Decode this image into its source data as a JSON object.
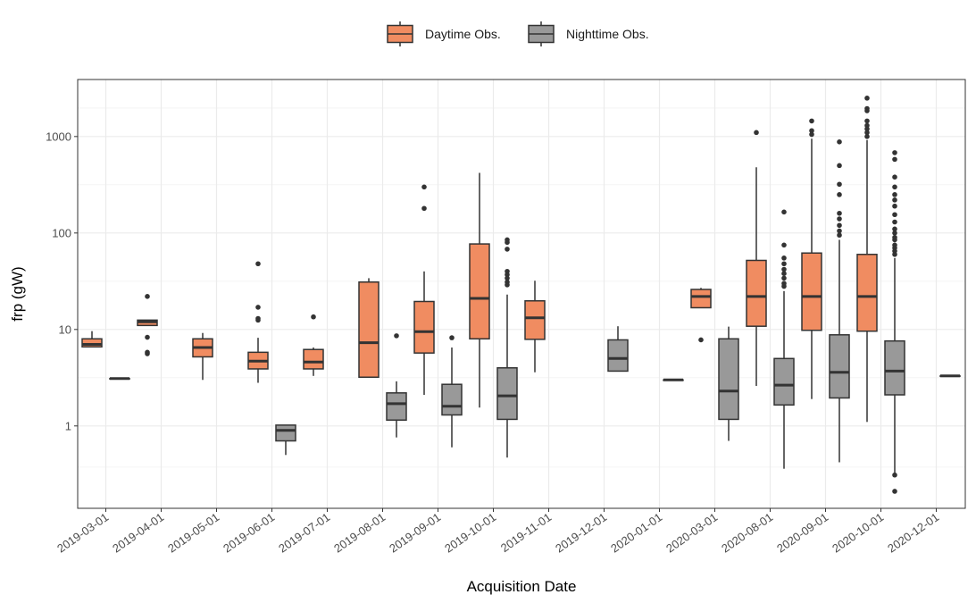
{
  "chart_data": {
    "type": "box",
    "xlabel": "Acquisition Date",
    "ylabel": "frp (gW)",
    "y_scale": "log10",
    "ylim": [
      0.14,
      3900
    ],
    "yticks": [
      1,
      10,
      100,
      1000
    ],
    "ytick_labels": [
      "1",
      "10",
      "100",
      "1000"
    ],
    "grid": true,
    "legend_position": "top",
    "colors": {
      "Daytime Obs.": "#f08c61",
      "Nighttime Obs.": "#999999",
      "outline": "#333333"
    },
    "categories": [
      "2019-03-01",
      "2019-04-01",
      "2019-05-01",
      "2019-06-01",
      "2019-07-01",
      "2019-08-01",
      "2019-09-01",
      "2019-10-01",
      "2019-11-01",
      "2019-12-01",
      "2020-01-01",
      "2020-03-01",
      "2020-08-01",
      "2020-09-01",
      "2020-10-01",
      "2020-12-01"
    ],
    "series": [
      {
        "name": "Daytime Obs.",
        "boxes": [
          {
            "category": "2019-03-01",
            "min": 6.6,
            "q1": 6.6,
            "median": 7.0,
            "q3": 8.0,
            "max": 9.6,
            "outliers": []
          },
          {
            "category": "2019-04-01",
            "min": 11.0,
            "q1": 11.0,
            "median": 12.0,
            "q3": 12.5,
            "max": 12.5,
            "outliers": [
              22,
              8.3,
              5.8,
              5.6
            ]
          },
          {
            "category": "2019-05-01",
            "min": 3.0,
            "q1": 5.2,
            "median": 6.5,
            "q3": 8.0,
            "max": 9.2,
            "outliers": []
          },
          {
            "category": "2019-06-01",
            "min": 2.8,
            "q1": 3.9,
            "median": 4.7,
            "q3": 5.8,
            "max": 8.2,
            "outliers": [
              48,
              17,
              13,
              12.5
            ]
          },
          {
            "category": "2019-07-01",
            "min": 3.3,
            "q1": 3.9,
            "median": 4.6,
            "q3": 6.2,
            "max": 6.5,
            "outliers": [
              13.5
            ]
          },
          {
            "category": "2019-08-01",
            "min": 3.2,
            "q1": 3.2,
            "median": 7.3,
            "q3": 31,
            "max": 34,
            "outliers": []
          },
          {
            "category": "2019-09-01",
            "min": 2.1,
            "q1": 5.7,
            "median": 9.5,
            "q3": 19.5,
            "max": 40,
            "outliers": [
              300,
              180
            ]
          },
          {
            "category": "2019-10-01",
            "min": 1.55,
            "q1": 8.0,
            "median": 21,
            "q3": 77,
            "max": 420,
            "outliers": []
          },
          {
            "category": "2019-11-01",
            "min": 3.6,
            "q1": 7.9,
            "median": 13.2,
            "q3": 19.8,
            "max": 32,
            "outliers": []
          },
          {
            "category": "2020-03-01",
            "min": 16.8,
            "q1": 16.8,
            "median": 22,
            "q3": 26,
            "max": 27,
            "outliers": [
              7.8
            ]
          },
          {
            "category": "2020-08-01",
            "min": 2.6,
            "q1": 10.8,
            "median": 22,
            "q3": 52,
            "max": 480,
            "outliers": [
              1100
            ]
          },
          {
            "category": "2020-09-01",
            "min": 1.9,
            "q1": 9.8,
            "median": 22,
            "q3": 62,
            "max": 950,
            "outliers": [
              1450,
              1150,
              1050
            ]
          },
          {
            "category": "2020-10-01",
            "min": 1.1,
            "q1": 9.6,
            "median": 22,
            "q3": 60,
            "max": 920,
            "outliers": [
              2500,
              1950,
              1850,
              1450,
              1300,
              1200,
              1100,
              1000
            ]
          }
        ]
      },
      {
        "name": "Nighttime Obs.",
        "boxes": [
          {
            "category": "2019-03-01",
            "min": 3.1,
            "q1": 3.1,
            "median": 3.1,
            "q3": 3.1,
            "max": 3.1,
            "outliers": []
          },
          {
            "category": "2019-06-01",
            "min": 0.5,
            "q1": 0.7,
            "median": 0.9,
            "q3": 1.02,
            "max": 1.02,
            "outliers": []
          },
          {
            "category": "2019-08-01",
            "min": 0.76,
            "q1": 1.15,
            "median": 1.7,
            "q3": 2.2,
            "max": 2.9,
            "outliers": [
              8.6
            ]
          },
          {
            "category": "2019-09-01",
            "min": 0.6,
            "q1": 1.3,
            "median": 1.6,
            "q3": 2.7,
            "max": 6.5,
            "outliers": [
              8.2
            ]
          },
          {
            "category": "2019-10-01",
            "min": 0.47,
            "q1": 1.17,
            "median": 2.05,
            "q3": 4.0,
            "max": 23,
            "outliers": [
              85,
              80,
              68,
              40,
              37,
              34,
              31,
              29
            ]
          },
          {
            "category": "2019-12-01",
            "min": 3.7,
            "q1": 3.7,
            "median": 5.0,
            "q3": 7.8,
            "max": 10.8,
            "outliers": []
          },
          {
            "category": "2020-01-01",
            "min": 3.0,
            "q1": 3.0,
            "median": 3.0,
            "q3": 3.0,
            "max": 3.0,
            "outliers": []
          },
          {
            "category": "2020-03-01",
            "min": 0.7,
            "q1": 1.17,
            "median": 2.3,
            "q3": 8.0,
            "max": 10.7,
            "outliers": []
          },
          {
            "category": "2020-08-01",
            "min": 0.36,
            "q1": 1.65,
            "median": 2.65,
            "q3": 5.0,
            "max": 25,
            "outliers": [
              165,
              75,
              55,
              48,
              42,
              38,
              34,
              30,
              28
            ]
          },
          {
            "category": "2020-09-01",
            "min": 0.42,
            "q1": 1.95,
            "median": 3.6,
            "q3": 8.8,
            "max": 85,
            "outliers": [
              880,
              500,
              320,
              250,
              160,
              140,
              120,
              105,
              95
            ]
          },
          {
            "category": "2020-10-01",
            "min": 0.31,
            "q1": 2.1,
            "median": 3.7,
            "q3": 7.6,
            "max": 55,
            "outliers": [
              680,
              580,
              380,
              300,
              250,
              220,
              190,
              155,
              130,
              110,
              100,
              90,
              85,
              75,
              70,
              65,
              60,
              0.31,
              0.21
            ]
          },
          {
            "category": "2020-12-01",
            "min": 3.3,
            "q1": 3.3,
            "median": 3.3,
            "q3": 3.3,
            "max": 3.3,
            "outliers": []
          }
        ]
      }
    ]
  }
}
